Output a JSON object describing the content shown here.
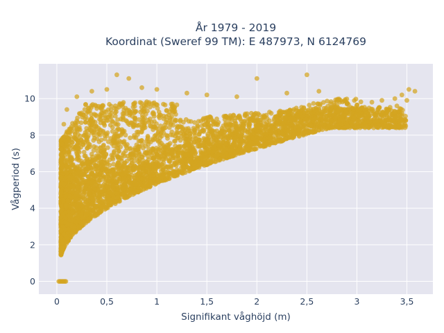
{
  "chart_data": {
    "type": "scatter",
    "title_line1": "År 1979 - 2019",
    "title_line2": "Koordinat (Sweref 99 TM): E 487973, N 6124769",
    "xlabel": "Signifikant våghöjd (m)",
    "ylabel": "Vågperiod (s)",
    "xlim": [
      -0.18,
      3.76
    ],
    "ylim": [
      -0.7,
      11.9
    ],
    "xticks": [
      0,
      0.5,
      1,
      1.5,
      2,
      2.5,
      3,
      3.5
    ],
    "xtick_labels": [
      "0",
      "0,5",
      "1",
      "1,5",
      "2",
      "2,5",
      "3",
      "3,5"
    ],
    "yticks": [
      0,
      2,
      4,
      6,
      8,
      10
    ],
    "ytick_labels": [
      "0",
      "2",
      "4",
      "6",
      "8",
      "10"
    ],
    "grid": true,
    "marker_color": "#d4a520",
    "plot_bg": "#e5e5ef",
    "distribution_notes": "Dense point cloud; lower envelope rises from ~1 s at 0.05 m to ~8 s at 3.5 m; upper envelope ~10 s; outliers up to ~11.3 s near 0.6 m; zero-period points at 0.02–0.09 m",
    "points": [
      [
        0.6,
        11.3
      ],
      [
        0.72,
        11.1
      ],
      [
        2.5,
        11.3
      ],
      [
        2.0,
        11.1
      ],
      [
        3.52,
        10.5
      ],
      [
        3.58,
        10.4
      ],
      [
        3.45,
        10.2
      ],
      [
        3.38,
        10.0
      ],
      [
        3.25,
        9.9
      ],
      [
        3.15,
        9.8
      ],
      [
        3.05,
        9.5
      ],
      [
        2.95,
        9.2
      ],
      [
        2.85,
        9.0
      ],
      [
        2.3,
        10.3
      ],
      [
        2.62,
        10.4
      ],
      [
        1.8,
        10.1
      ],
      [
        1.5,
        10.2
      ],
      [
        1.3,
        10.3
      ],
      [
        1.0,
        10.5
      ],
      [
        0.85,
        10.6
      ],
      [
        0.5,
        10.5
      ],
      [
        0.35,
        10.4
      ],
      [
        0.2,
        10.1
      ],
      [
        0.1,
        9.4
      ],
      [
        0.07,
        8.6
      ],
      [
        0.12,
        7.8
      ],
      [
        2.8,
        9.6
      ],
      [
        3.3,
        9.3
      ],
      [
        3.4,
        9.6
      ],
      [
        3.5,
        9.9
      ],
      [
        3.1,
        9.2
      ],
      [
        3.0,
        8.4
      ],
      [
        3.2,
        8.8
      ]
    ],
    "zero_points_x": [
      0.02,
      0.03,
      0.04,
      0.05,
      0.06,
      0.07,
      0.08,
      0.09
    ]
  }
}
